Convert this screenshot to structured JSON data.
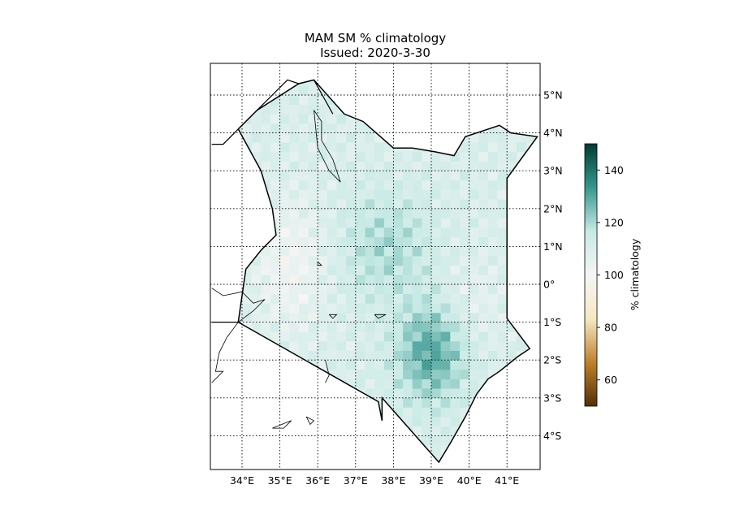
{
  "figure": {
    "title": "MAM SM % climatology",
    "subtitle": "Issued: 2020-3-30"
  },
  "map": {
    "region": "Kenya",
    "lon_ticks": [
      "34°E",
      "35°E",
      "36°E",
      "37°E",
      "38°E",
      "39°E",
      "40°E",
      "41°E"
    ],
    "lat_ticks": [
      "5°N",
      "4°N",
      "3°N",
      "2°N",
      "1°N",
      "0°",
      "1°S",
      "2°S",
      "3°S",
      "4°S"
    ],
    "gridlines": "dotted",
    "coastlines": true,
    "borders": true
  },
  "colorbar": {
    "label": "% climatology",
    "ticks": [
      "140",
      "120",
      "100",
      "80",
      "60"
    ],
    "cmap": "BrBG",
    "range": [
      50,
      150
    ],
    "stops": [
      "#543005",
      "#bf812d",
      "#f6e8c3",
      "#f5f5f5",
      "#c7eae5",
      "#35978f",
      "#003c30"
    ]
  },
  "chart_data": {
    "type": "heatmap",
    "title": "MAM SM % climatology",
    "subtitle": "Issued: 2020-3-30",
    "x_range_lon": [
      33.2,
      41.9
    ],
    "y_range_lat": [
      -4.9,
      5.9
    ],
    "colorbar_label": "% climatology",
    "value_range": [
      50,
      150
    ],
    "summary_regions": [
      {
        "area": "north / central",
        "approx_value": 112
      },
      {
        "area": "west near lake",
        "approx_value": 103
      },
      {
        "area": "central highlands",
        "approx_value": 120
      },
      {
        "area": "southeast interior (38.5-39.5E, 1-3S)",
        "approx_value": 130
      },
      {
        "area": "northeast",
        "approx_value": 108
      }
    ]
  }
}
